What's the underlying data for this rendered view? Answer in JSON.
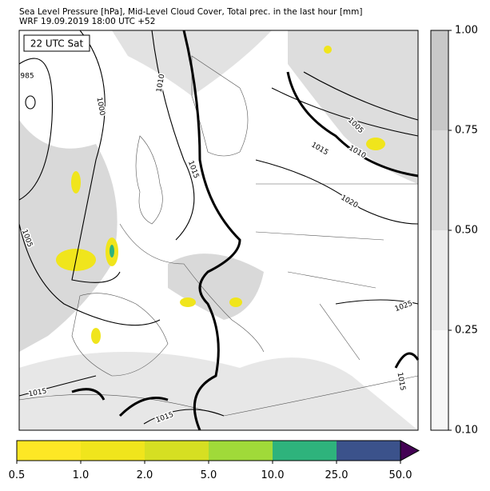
{
  "header": {
    "title": "Sea Level Pressure [hPa], Mid-Level Cloud Cover, Total prec. in the last hour [mm]",
    "subtitle": "WRF 19.09.2019 18:00 UTC +52"
  },
  "map": {
    "time_label": "22 UTC Sat",
    "isobar_labels": [
      "985",
      "1000",
      "1010",
      "1015",
      "1005",
      "1015",
      "1010",
      "1020",
      "1005",
      "1025",
      "1015",
      "1015",
      "1015"
    ]
  },
  "cloud_colorbar": {
    "ticks": [
      {
        "value": 1,
        "label": "1.00"
      },
      {
        "value": 0.75,
        "label": "0.75"
      },
      {
        "value": 0.5,
        "label": "0.50"
      },
      {
        "value": 0.25,
        "label": "0.25"
      },
      {
        "value": 0.1,
        "label": "0.10"
      }
    ],
    "colors": [
      "#f7f7f7",
      "#ebebeb",
      "#dadada",
      "#c8c8c8"
    ]
  },
  "precip_colorbar": {
    "levels": [
      "0.5",
      "1.0",
      "2.0",
      "5.0",
      "10.0",
      "25.0",
      "50.0"
    ],
    "colors": [
      "#fde725",
      "#f0e51c",
      "#d6df22",
      "#a0da39",
      "#2eb37c",
      "#3b528b"
    ],
    "extend_color": "#440154"
  }
}
